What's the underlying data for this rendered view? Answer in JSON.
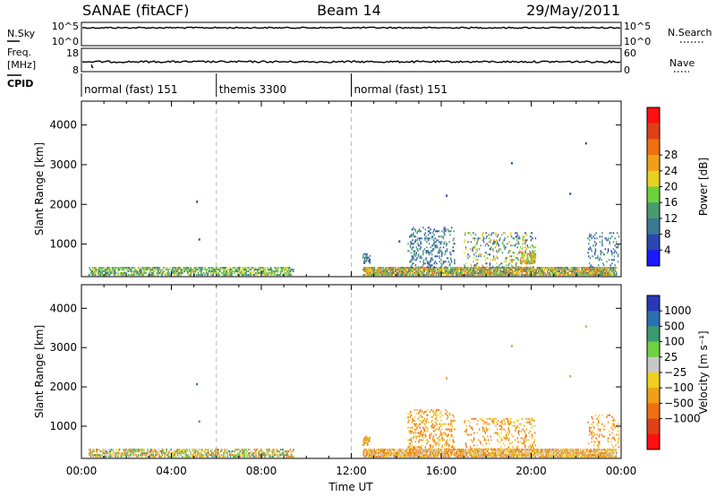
{
  "header": {
    "radar": "SANAE (fitACF)",
    "beam": "Beam 14",
    "date": "29/May/2011"
  },
  "noise_panel": {
    "left_label": "N.Sky",
    "right_label": "N.Search",
    "left_ticks": [
      "10^5",
      "10^0"
    ],
    "right_ticks": [
      "10^5",
      "10^0"
    ]
  },
  "freq_panel": {
    "left_label_line1": "Freq.",
    "left_label_line2": "[MHz]",
    "right_label": "Nave",
    "left_ticks": [
      "18",
      "8"
    ],
    "right_ticks": [
      "60",
      "0"
    ]
  },
  "cpid_panel": {
    "label": "CPID",
    "segments": [
      {
        "start_hour": 0,
        "end_hour": 6,
        "label": "normal (fast) 151"
      },
      {
        "start_hour": 6,
        "end_hour": 12,
        "label": "themis 3300"
      },
      {
        "start_hour": 12,
        "end_hour": 24,
        "label": "normal (fast) 151"
      }
    ]
  },
  "chart_data": [
    {
      "type": "heatmap",
      "name": "power",
      "ylabel": "Slant Range [km]",
      "colorbar_label": "Power [dB]",
      "xlim": [
        0,
        24
      ],
      "ylim": [
        180,
        4600
      ],
      "yticks": [
        1000,
        2000,
        3000,
        4000
      ],
      "colorbar_ticks": [
        "4",
        "8",
        "12",
        "16",
        "20",
        "24",
        "28"
      ],
      "colors": [
        "#1a1aff",
        "#2848b0",
        "#3a7a90",
        "#4a9a70",
        "#6cd23c",
        "#e8d020",
        "#f0a018",
        "#f07010",
        "#e04018",
        "#ff1010"
      ],
      "scatter_regions": [
        {
          "t0": 0.3,
          "t1": 9.4,
          "r0": 200,
          "r1": 420,
          "density": 0.55,
          "level": [
            2,
            5
          ]
        },
        {
          "t0": 12.5,
          "t1": 23.8,
          "r0": 200,
          "r1": 420,
          "density": 0.75,
          "level": [
            2,
            7
          ]
        },
        {
          "t0": 12.5,
          "t1": 12.8,
          "r0": 500,
          "r1": 750,
          "density": 0.5,
          "level": [
            1,
            3
          ]
        },
        {
          "t0": 14.5,
          "t1": 16.6,
          "r0": 400,
          "r1": 1400,
          "density": 0.18,
          "level": [
            1,
            3
          ]
        },
        {
          "t0": 17.0,
          "t1": 20.2,
          "r0": 400,
          "r1": 1300,
          "density": 0.15,
          "level": [
            1,
            6
          ]
        },
        {
          "t0": 19.5,
          "t1": 20.2,
          "r0": 500,
          "r1": 800,
          "density": 0.5,
          "level": [
            3,
            7
          ]
        },
        {
          "t0": 22.5,
          "t1": 23.9,
          "r0": 400,
          "r1": 1300,
          "density": 0.12,
          "level": [
            1,
            3
          ]
        }
      ],
      "points": [
        {
          "t": 5.1,
          "r": 2050,
          "level": 1
        },
        {
          "t": 5.2,
          "r": 1100,
          "level": 1
        },
        {
          "t": 22.4,
          "r": 3520,
          "level": 1
        },
        {
          "t": 19.1,
          "r": 3020,
          "level": 1
        },
        {
          "t": 16.2,
          "r": 2200,
          "level": 1
        },
        {
          "t": 14.1,
          "r": 1050,
          "level": 1
        },
        {
          "t": 21.7,
          "r": 2250,
          "level": 1
        }
      ]
    },
    {
      "type": "heatmap",
      "name": "velocity",
      "ylabel": "Slant Range [km]",
      "colorbar_label": "Velocity [m s⁻¹]",
      "xlabel": "Time UT",
      "xlim": [
        0,
        24
      ],
      "ylim": [
        180,
        4600
      ],
      "xticks": [
        "00:00",
        "04:00",
        "08:00",
        "12:00",
        "16:00",
        "20:00",
        "00:00"
      ],
      "yticks": [
        1000,
        2000,
        3000,
        4000
      ],
      "colorbar_ticks": [
        "1000",
        "500",
        "100",
        "25",
        "−25",
        "−100",
        "−500",
        "−1000"
      ],
      "colors": [
        "#2838b8",
        "#2a70b0",
        "#3a9a70",
        "#70d040",
        "#c8c8c8",
        "#f0d020",
        "#f0a018",
        "#f07010",
        "#e04018",
        "#ff1010"
      ],
      "scatter_regions": [
        {
          "t0": 0.3,
          "t1": 9.4,
          "r0": 200,
          "r1": 400,
          "density": 0.5,
          "level": [
            2,
            7
          ]
        },
        {
          "t0": 12.5,
          "t1": 23.8,
          "r0": 200,
          "r1": 400,
          "density": 0.75,
          "level": [
            4,
            7
          ]
        },
        {
          "t0": 12.5,
          "t1": 12.8,
          "r0": 500,
          "r1": 750,
          "density": 0.5,
          "level": [
            5,
            7
          ]
        },
        {
          "t0": 14.5,
          "t1": 16.6,
          "r0": 400,
          "r1": 1400,
          "density": 0.2,
          "level": [
            5,
            7
          ]
        },
        {
          "t0": 17.0,
          "t1": 20.2,
          "r0": 400,
          "r1": 1200,
          "density": 0.15,
          "level": [
            5,
            7
          ]
        },
        {
          "t0": 22.5,
          "t1": 23.9,
          "r0": 400,
          "r1": 1300,
          "density": 0.12,
          "level": [
            5,
            7
          ]
        }
      ],
      "points": [
        {
          "t": 5.1,
          "r": 2050,
          "level": 1
        },
        {
          "t": 5.2,
          "r": 1100,
          "level": 2
        },
        {
          "t": 22.4,
          "r": 3520,
          "level": 6
        },
        {
          "t": 19.1,
          "r": 3020,
          "level": 3
        },
        {
          "t": 16.2,
          "r": 2200,
          "level": 6
        },
        {
          "t": 21.7,
          "r": 2250,
          "level": 6
        }
      ]
    }
  ]
}
